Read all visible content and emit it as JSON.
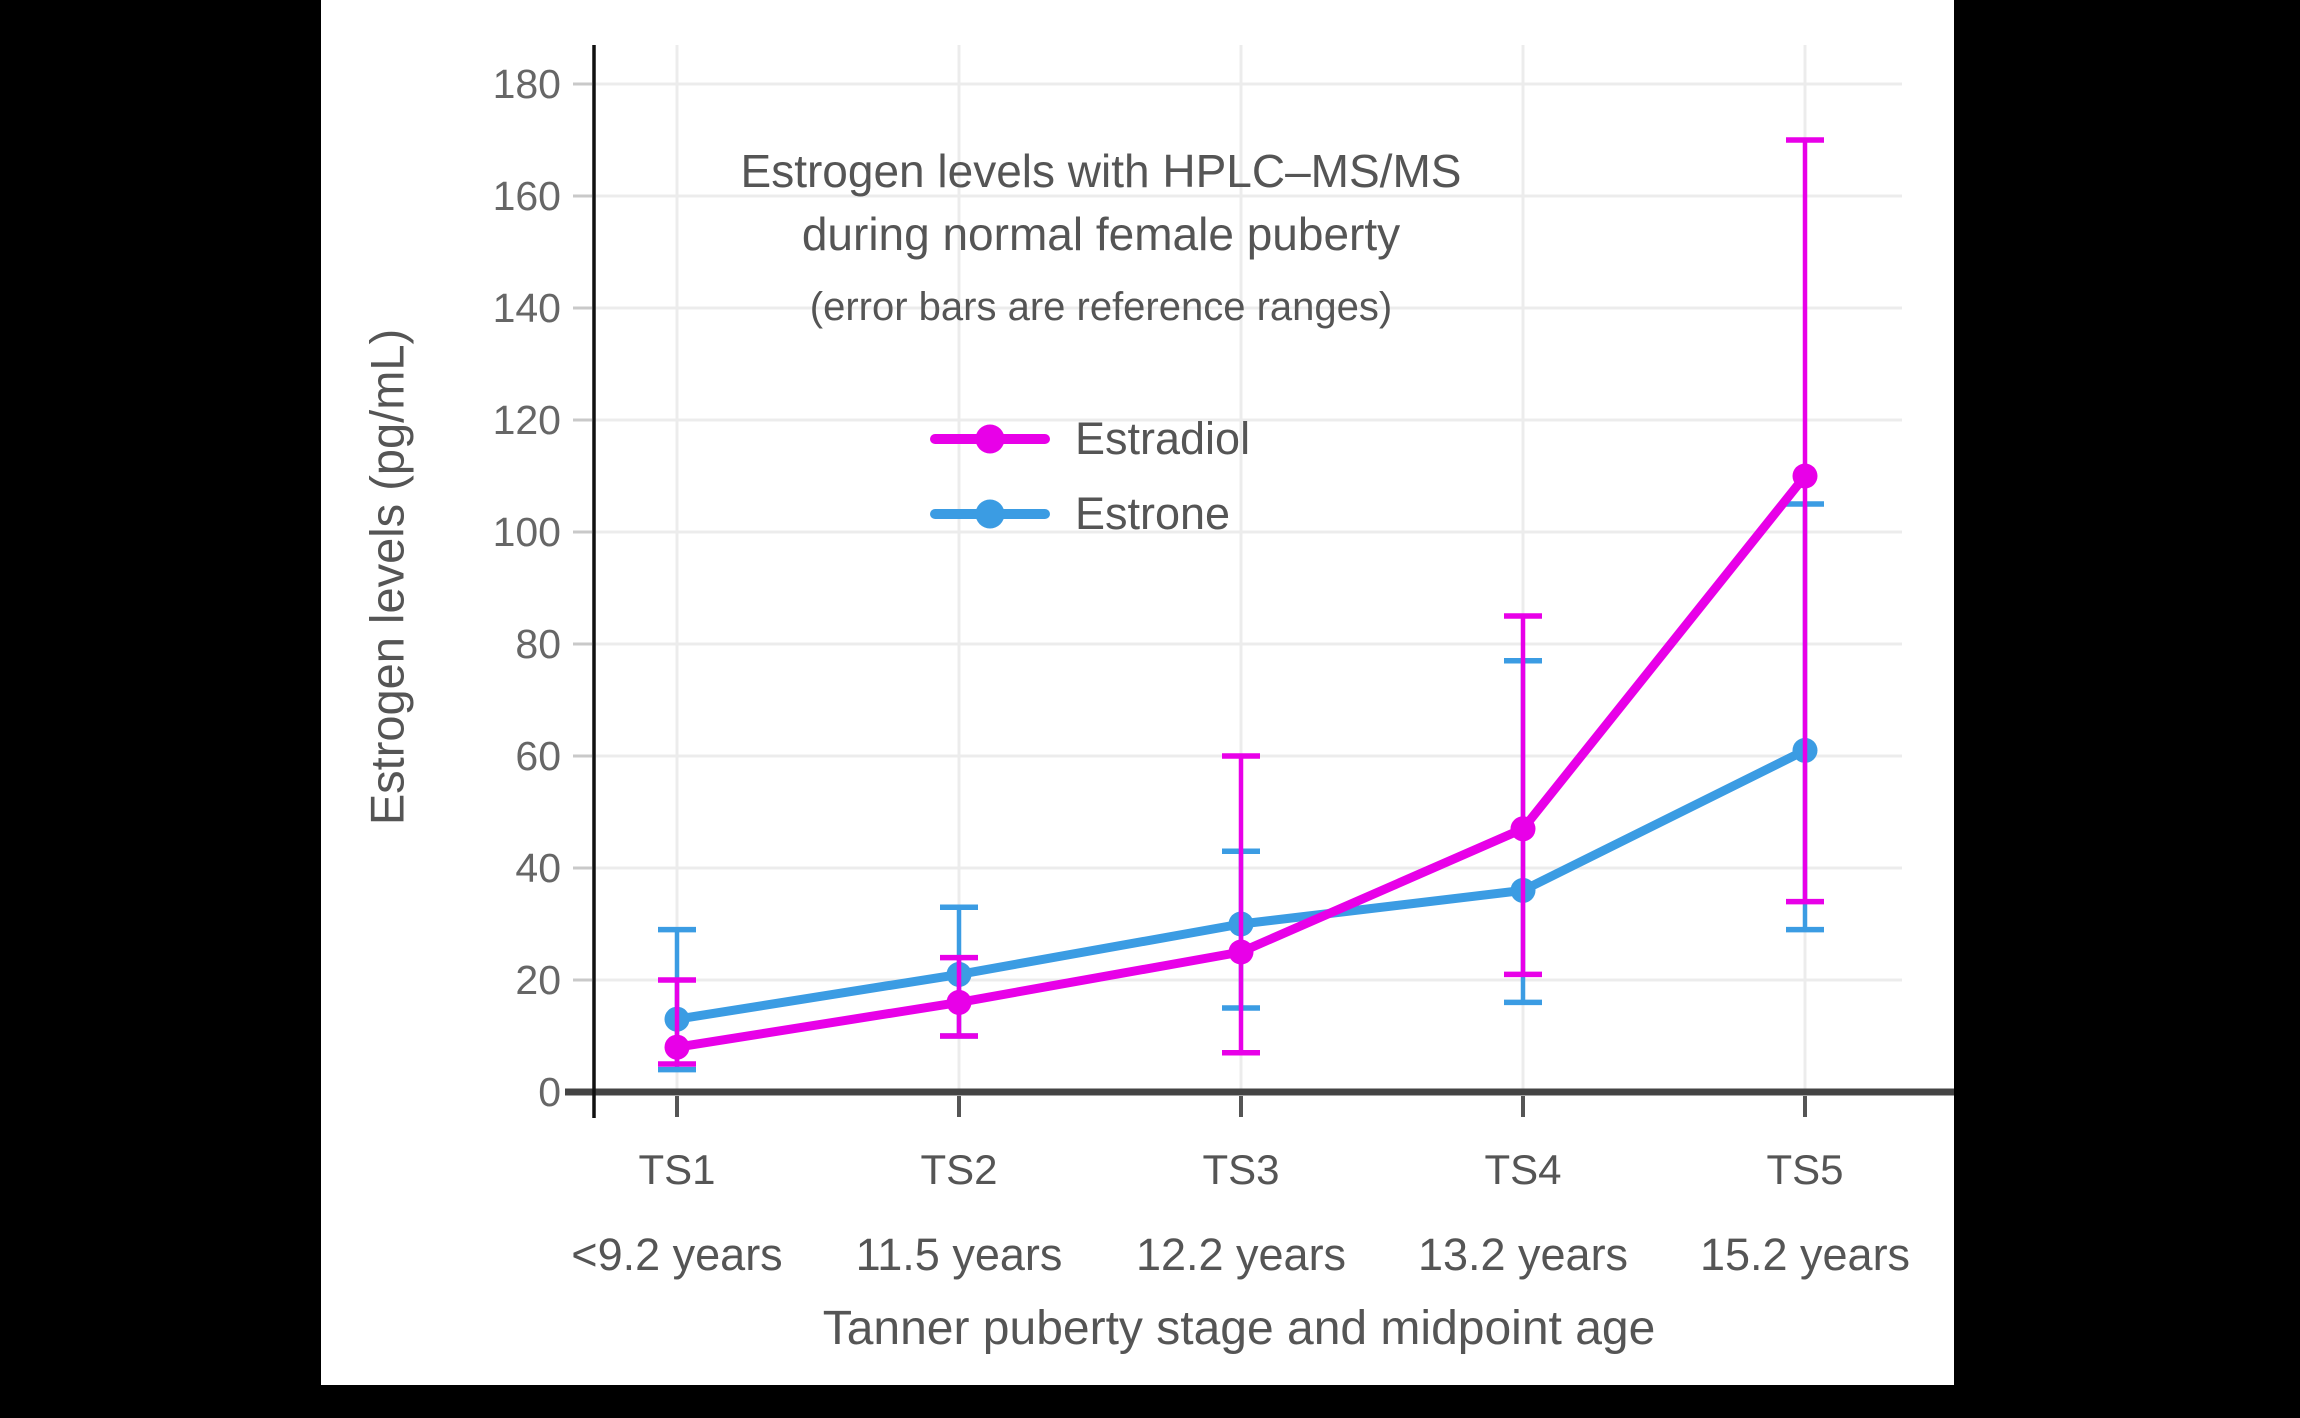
{
  "chart_data": {
    "type": "line",
    "title": "Estrogen levels with HPLC–MS/MS during normal female puberty",
    "title_lines": [
      "Estrogen levels with HPLC–MS/MS",
      "during normal female puberty"
    ],
    "subtitle": "(error bars are reference ranges)",
    "xlabel": "Tanner puberty stage and midpoint age",
    "ylabel": "Estrogen levels (pg/mL)",
    "ylim": [
      0,
      185
    ],
    "y_ticks": [
      0,
      20,
      40,
      60,
      80,
      100,
      120,
      140,
      160,
      180
    ],
    "grid": true,
    "legend_position": "upper-center",
    "error_bar_meaning": "reference ranges",
    "categories": [
      "TS1",
      "TS2",
      "TS3",
      "TS4",
      "TS5"
    ],
    "category_sublabels": [
      "<9.2 years",
      "11.5 years",
      "12.2 years",
      "13.2 years",
      "15.2 years"
    ],
    "series": [
      {
        "name": "Estradiol",
        "color": "#E800E8",
        "values": [
          8,
          16,
          25,
          47,
          110
        ],
        "range_low": [
          5,
          10,
          7,
          21,
          34
        ],
        "range_high": [
          20,
          24,
          60,
          85,
          170
        ]
      },
      {
        "name": "Estrone",
        "color": "#3B9CE3",
        "values": [
          13,
          21,
          30,
          36,
          61
        ],
        "range_low": [
          4,
          10,
          15,
          16,
          29
        ],
        "range_high": [
          29,
          33,
          43,
          77,
          105
        ]
      }
    ],
    "colors": {
      "grid_line": "#ECECEC",
      "x_axis_line": "#444444",
      "y_axis_line": "#111111",
      "tick_label": "#666666",
      "text": "#555555"
    }
  }
}
